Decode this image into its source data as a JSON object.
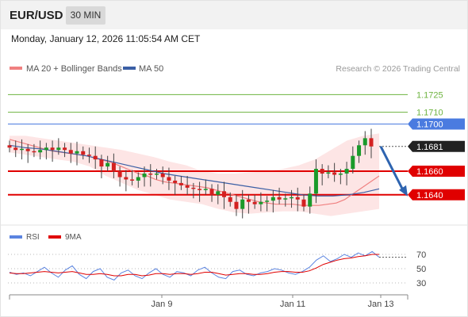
{
  "header": {
    "symbol": "EUR/USD",
    "timeframe": "30 MIN"
  },
  "datetime": "Monday, January 12, 2026 11:05:54 AM CET",
  "legend": {
    "ma20_label": "MA 20 + Bollinger Bands",
    "ma50_label": "MA 50",
    "copyright": "Research © 2026 Trading Central"
  },
  "rsi_legend": {
    "rsi_label": "RSI",
    "ma_label": "9MA"
  },
  "colors": {
    "ma20": "#f08080",
    "ma50": "#3b5fa5",
    "band_fill": "#fde0e0",
    "support": "#e00000",
    "resistance_green": "#6db33f",
    "resistance_blue": "#4a7be0",
    "arrow": "#2e64b0",
    "candle_up": "#1a9a2a",
    "candle_down": "#d42020",
    "rsi": "#5b84e0",
    "rsi_ma": "#e00000"
  },
  "chart_data": {
    "type": "candlestick",
    "symbol": "EUR/USD",
    "interval": "30 MIN",
    "ylim": [
      1.1617,
      1.1738
    ],
    "x_ticks": [
      "Jan 9",
      "Jan 11",
      "Jan 13"
    ],
    "price_levels": [
      {
        "label": "1.1725",
        "value": 1.1725,
        "kind": "resistance",
        "color": "#6db33f"
      },
      {
        "label": "1.1710",
        "value": 1.171,
        "kind": "resistance",
        "color": "#6db33f"
      },
      {
        "label": "1.1700",
        "value": 1.17,
        "kind": "pivot",
        "color": "#4a7be0"
      },
      {
        "label": "1.1681",
        "value": 1.1681,
        "kind": "last",
        "color": "#222222"
      },
      {
        "label": "1.1660",
        "value": 1.166,
        "kind": "support",
        "color": "#e00000"
      },
      {
        "label": "1.1640",
        "value": 1.164,
        "kind": "support",
        "color": "#e00000"
      }
    ],
    "close_series": [
      1.168,
      1.1678,
      1.1679,
      1.1677,
      1.1676,
      1.1678,
      1.168,
      1.1678,
      1.168,
      1.1678,
      1.1675,
      1.1677,
      1.1674,
      1.1673,
      1.167,
      1.1664,
      1.1667,
      1.166,
      1.1655,
      1.1653,
      1.1652,
      1.1655,
      1.1658,
      1.1657,
      1.1658,
      1.1655,
      1.1652,
      1.165,
      1.1648,
      1.1646,
      1.1645,
      1.1644,
      1.1645,
      1.164,
      1.1643,
      1.1638,
      1.1634,
      1.1628,
      1.1636,
      1.1634,
      1.1632,
      1.1634,
      1.1635,
      1.1638,
      1.1636,
      1.1637,
      1.1638,
      1.1636,
      1.163,
      1.1641,
      1.1662,
      1.1658,
      1.1659,
      1.1657,
      1.1658,
      1.1662,
      1.1673,
      1.1682,
      1.1688,
      1.1681
    ],
    "ma20_series": [
      1.1687,
      1.1685,
      1.1683,
      1.1681,
      1.1679,
      1.1677,
      1.1676,
      1.1675,
      1.1674,
      1.1673,
      1.1671,
      1.1669,
      1.1667,
      1.1664,
      1.1661,
      1.1658,
      1.1656,
      1.1653,
      1.1651,
      1.165,
      1.1649,
      1.1648,
      1.1647,
      1.1646,
      1.1644,
      1.1642,
      1.164,
      1.1638,
      1.1636,
      1.1634,
      1.1633,
      1.1632,
      1.1632,
      1.1632,
      1.1631,
      1.1631,
      1.1631,
      1.1632,
      1.1633,
      1.1636,
      1.1641,
      1.1646,
      1.1651,
      1.1656
    ],
    "ma50_series": [
      1.1682,
      1.168,
      1.1679,
      1.1677,
      1.1675,
      1.1673,
      1.167,
      1.1667,
      1.1664,
      1.1661,
      1.1658,
      1.1656,
      1.1654,
      1.1652,
      1.165,
      1.1648,
      1.1646,
      1.1644,
      1.1642,
      1.164,
      1.1639,
      1.1639,
      1.164,
      1.1642,
      1.1645
    ],
    "bollinger_upper": [
      1.169,
      1.169,
      1.1688,
      1.1686,
      1.1684,
      1.1682,
      1.168,
      1.1678,
      1.1675,
      1.1672,
      1.1668,
      1.1665,
      1.166,
      1.1658,
      1.1658,
      1.1659,
      1.166,
      1.1662,
      1.1665,
      1.167,
      1.1678,
      1.1686,
      1.169,
      1.1692
    ],
    "bollinger_lower": [
      1.1676,
      1.1674,
      1.1672,
      1.167,
      1.1668,
      1.1664,
      1.1656,
      1.165,
      1.1644,
      1.164,
      1.1636,
      1.1634,
      1.1632,
      1.1628,
      1.1625,
      1.1624,
      1.1625,
      1.1626,
      1.1626,
      1.1624,
      1.1622,
      1.1624,
      1.1626,
      1.1628
    ],
    "projection": {
      "from": 1.1681,
      "to": 1.164
    },
    "rsi": {
      "levels": [
        70,
        50,
        30
      ],
      "rsi_series": [
        45,
        42,
        44,
        40,
        46,
        52,
        44,
        38,
        48,
        54,
        42,
        36,
        46,
        50,
        38,
        34,
        44,
        48,
        40,
        36,
        44,
        50,
        42,
        38,
        46,
        44,
        40,
        48,
        52,
        44,
        38,
        36,
        46,
        48,
        42,
        40,
        44,
        46,
        50,
        48,
        44,
        42,
        46,
        52,
        62,
        68,
        60,
        64,
        70,
        66,
        72,
        68,
        74,
        66
      ],
      "ma_series": [
        44,
        43,
        43,
        44,
        45,
        46,
        45,
        44,
        45,
        46,
        44,
        42,
        42,
        43,
        42,
        40,
        40,
        42,
        42,
        40,
        41,
        43,
        43,
        42,
        43,
        43,
        42,
        43,
        45,
        45,
        43,
        41,
        42,
        43,
        43,
        42,
        42,
        43,
        45,
        46,
        46,
        45,
        45,
        47,
        51,
        56,
        59,
        62,
        64,
        65,
        67,
        68,
        70,
        70
      ]
    }
  }
}
